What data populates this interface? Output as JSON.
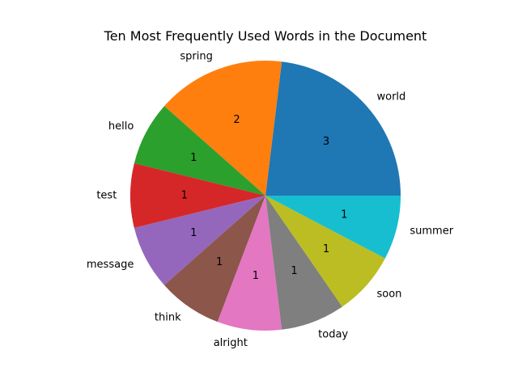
{
  "chart_data": {
    "type": "pie",
    "title": "Ten Most Frequently Used Words in the Document",
    "categories": [
      "world",
      "spring",
      "hello",
      "test",
      "message",
      "think",
      "alright",
      "today",
      "soon",
      "summer"
    ],
    "values": [
      3,
      2,
      1,
      1,
      1,
      1,
      1,
      1,
      1,
      1
    ],
    "value_labels": [
      "3",
      "2",
      "1",
      "1",
      "1",
      "1",
      "1",
      "1",
      "1",
      "1"
    ],
    "colors": [
      "#1f77b4",
      "#ff7f0e",
      "#2ca02c",
      "#d62728",
      "#9467bd",
      "#8c564b",
      "#e377c2",
      "#7f7f7f",
      "#bcbd22",
      "#17becf"
    ],
    "start_angle_deg": 0,
    "direction": "counterclockwise",
    "legend": "none"
  }
}
